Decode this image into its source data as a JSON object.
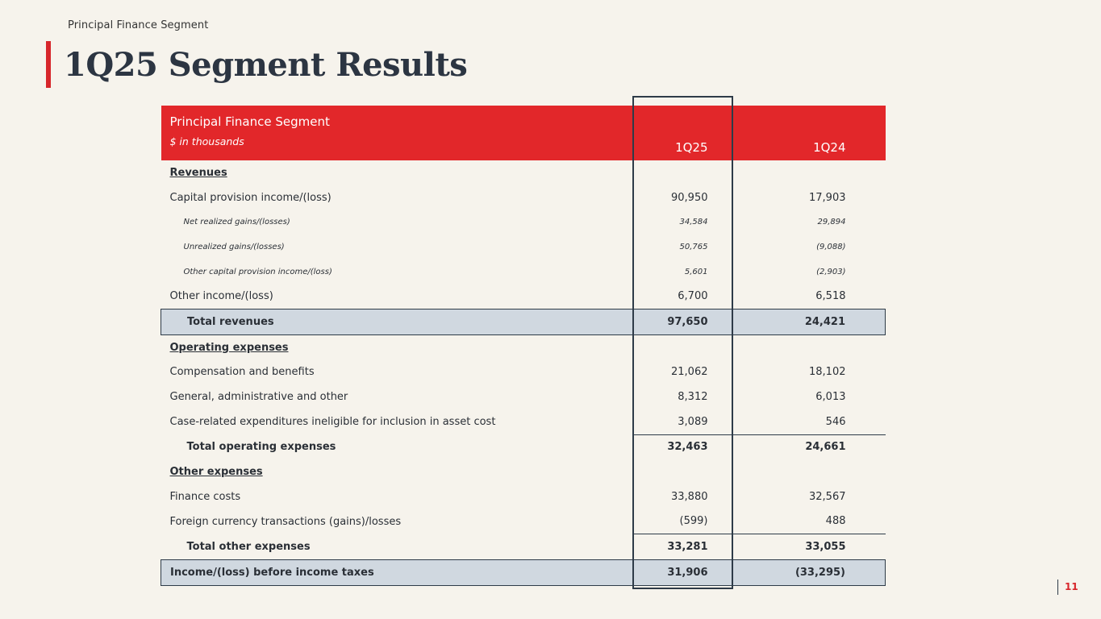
{
  "header": {
    "section_label": "Principal Finance Segment",
    "title": "1Q25 Segment Results"
  },
  "table": {
    "heading": "Principal Finance Segment",
    "units": "$ in thousands",
    "col_current": "1Q25",
    "col_prior": "1Q24",
    "rows": [
      {
        "label": "Revenues",
        "type": "section",
        "cur": "",
        "prior": ""
      },
      {
        "label": "Capital provision income/(loss)",
        "type": "line",
        "cur": "90,950",
        "prior": "17,903"
      },
      {
        "label": "Net realized gains/(losses)",
        "type": "sub",
        "cur": "34,584",
        "prior": "29,894"
      },
      {
        "label": "Unrealized gains/(losses)",
        "type": "sub",
        "cur": "50,765",
        "prior": "(9,088)"
      },
      {
        "label": "Other capital provision income/(loss)",
        "type": "sub",
        "cur": "5,601",
        "prior": "(2,903)"
      },
      {
        "label": "Other income/(loss)",
        "type": "line",
        "cur": "6,700",
        "prior": "6,518"
      },
      {
        "label": "Total revenues",
        "type": "boxed-indent",
        "cur": "97,650",
        "prior": "24,421"
      },
      {
        "label": "Operating expenses",
        "type": "section",
        "cur": "",
        "prior": ""
      },
      {
        "label": "Compensation and benefits",
        "type": "line",
        "cur": "21,062",
        "prior": "18,102"
      },
      {
        "label": "General, administrative and other",
        "type": "line",
        "cur": "8,312",
        "prior": "6,013"
      },
      {
        "label": "Case-related expenditures ineligible for inclusion in asset cost",
        "type": "line",
        "cur": "3,089",
        "prior": "546"
      },
      {
        "label": "Total operating expenses",
        "type": "total",
        "cur": "32,463",
        "prior": "24,661"
      },
      {
        "label": "Other expenses",
        "type": "section",
        "cur": "",
        "prior": ""
      },
      {
        "label": "Finance costs",
        "type": "line",
        "cur": "33,880",
        "prior": "32,567"
      },
      {
        "label": "Foreign currency transactions (gains)/losses",
        "type": "line",
        "cur": "(599)",
        "prior": "488"
      },
      {
        "label": "Total other expenses",
        "type": "total",
        "cur": "33,281",
        "prior": "33,055"
      },
      {
        "label": "Income/(loss) before income taxes",
        "type": "boxed",
        "cur": "31,906",
        "prior": "(33,295)"
      }
    ]
  },
  "footer": {
    "page_number": "11"
  },
  "colors": {
    "accent_red": "#e2272a",
    "highlight_fill": "#d0d8e0",
    "rule": "#2e3b48",
    "background": "#f6f3ec"
  }
}
